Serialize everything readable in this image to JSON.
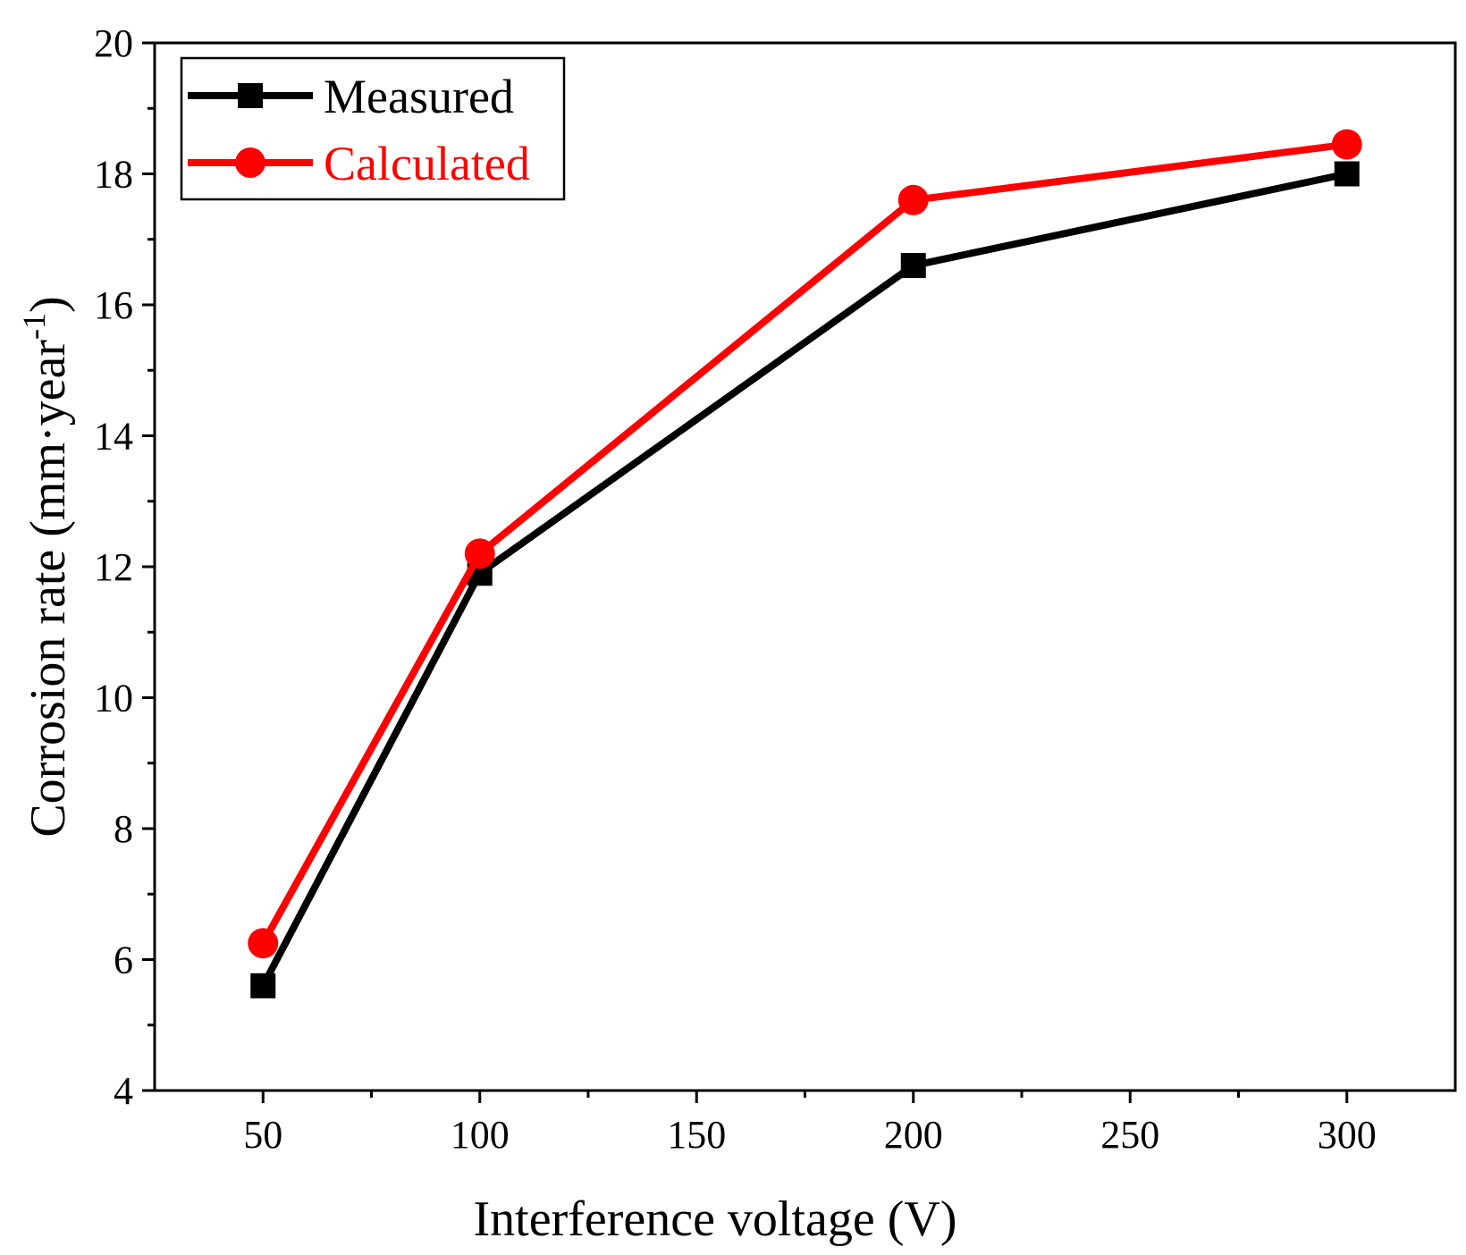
{
  "chart_data": {
    "type": "line",
    "xlabel": "Interference voltage (V)",
    "ylabel": "Corrosion rate (mm·year-1)",
    "ylabel_main": "Corrosion rate (mm·year",
    "ylabel_sup": "-1",
    "ylabel_close": ")",
    "xlim": [
      25,
      325
    ],
    "ylim": [
      4,
      20
    ],
    "xticks": [
      50,
      100,
      150,
      200,
      250,
      300
    ],
    "yticks": [
      4,
      6,
      8,
      10,
      12,
      14,
      16,
      18,
      20
    ],
    "x": [
      50,
      100,
      200,
      300
    ],
    "series": [
      {
        "name": "Measured",
        "values": [
          5.6,
          11.9,
          16.6,
          18.0
        ],
        "color": "#000000",
        "marker": "square"
      },
      {
        "name": "Calculated",
        "values": [
          6.25,
          12.2,
          17.6,
          18.45
        ],
        "color": "#ff0000",
        "marker": "circle"
      }
    ],
    "legend_position": "top-left",
    "grid": false
  }
}
